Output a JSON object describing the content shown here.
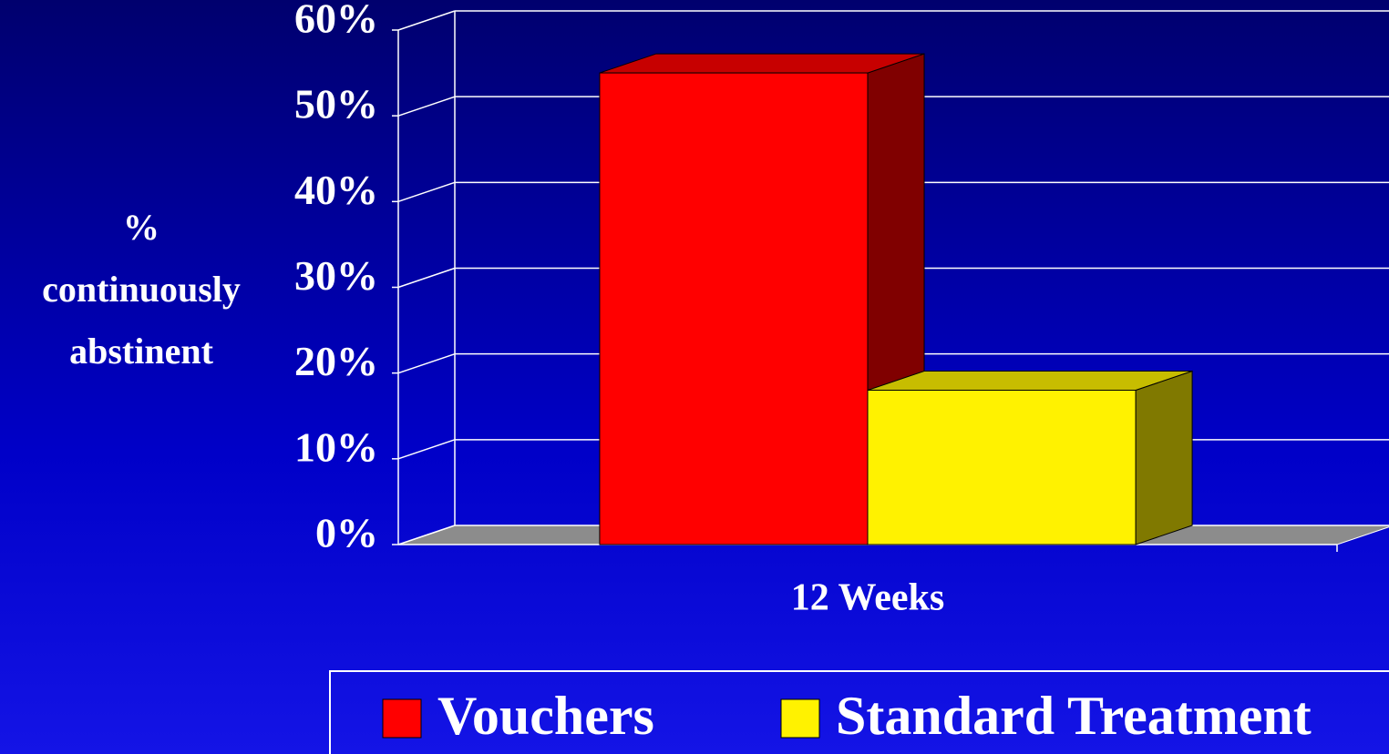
{
  "chart_data": {
    "type": "bar3d",
    "ylabel": "% continuously abstinent",
    "categories": [
      "12 Weeks"
    ],
    "series": [
      {
        "name": "Vouchers",
        "color": "#ff0000",
        "values": [
          55
        ]
      },
      {
        "name": "Standard Treatment",
        "color": "#fff200",
        "values": [
          18
        ]
      }
    ],
    "ylim": [
      0,
      60
    ],
    "yticks": [
      {
        "value": 0,
        "label": "0%"
      },
      {
        "value": 10,
        "label": "10%"
      },
      {
        "value": 20,
        "label": "20%"
      },
      {
        "value": 30,
        "label": "30%"
      },
      {
        "value": 40,
        "label": "40%"
      },
      {
        "value": 50,
        "label": "50%"
      },
      {
        "value": 60,
        "label": "60%"
      }
    ],
    "grid": true,
    "legend": "bottom"
  }
}
